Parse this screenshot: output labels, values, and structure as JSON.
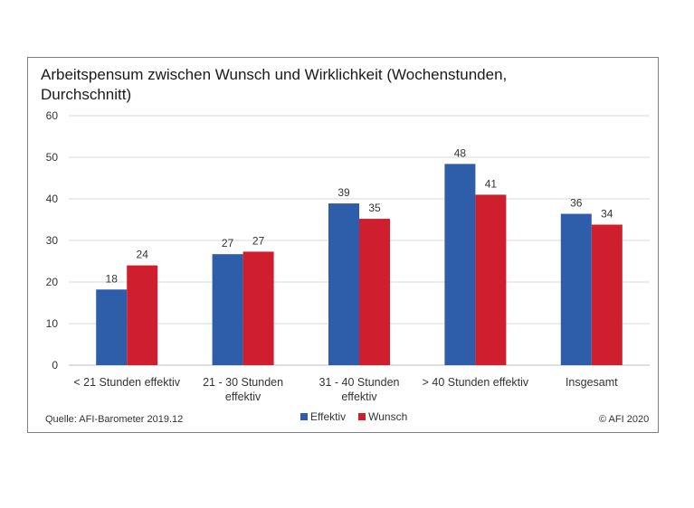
{
  "chart_data": {
    "type": "bar",
    "title": "Arbeitspensum zwischen Wunsch und Wirklichkeit (Wochenstunden, Durchschnitt)",
    "categories": [
      [
        "< 21 Stunden effektiv"
      ],
      [
        "21 - 30 Stunden",
        "effektiv"
      ],
      [
        "31 - 40 Stunden",
        "effektiv"
      ],
      [
        "> 40 Stunden effektiv"
      ],
      [
        "Insgesamt"
      ]
    ],
    "series": [
      {
        "name": "Effektiv",
        "color": "#2e5eaa",
        "values": [
          18,
          27,
          39,
          48,
          36
        ],
        "value_labels": [
          "18",
          "27",
          "39",
          "48",
          "36"
        ],
        "exact_values": [
          18.2,
          26.7,
          38.9,
          48.4,
          36.4
        ]
      },
      {
        "name": "Wunsch",
        "color": "#cf1f2e",
        "values": [
          24,
          27,
          35,
          41,
          34
        ],
        "value_labels": [
          "24",
          "27",
          "35",
          "41",
          "34"
        ],
        "exact_values": [
          24.0,
          27.3,
          35.2,
          41.0,
          33.8
        ]
      }
    ],
    "ylim": [
      0,
      60
    ],
    "yticks": [
      0,
      10,
      20,
      30,
      40,
      50,
      60
    ],
    "grid": true,
    "legend_position": "bottom-center"
  },
  "footer": {
    "source": "Quelle: AFI-Barometer 2019.12",
    "copyright": "© AFI 2020"
  }
}
